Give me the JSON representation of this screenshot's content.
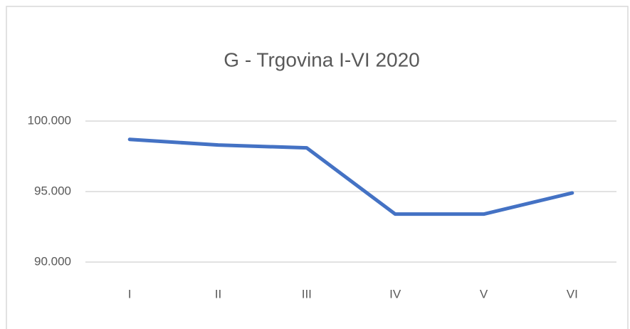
{
  "chart_data": {
    "type": "line",
    "title": "G - Trgovina I-VI 2020",
    "categories": [
      "I",
      "II",
      "III",
      "IV",
      "V",
      "VI"
    ],
    "values": [
      98700,
      98300,
      98100,
      93400,
      93400,
      94900
    ],
    "color": "#4472c4",
    "ylim": [
      90000,
      100000
    ],
    "yticks": [
      {
        "value": 90000,
        "label": "90.000"
      },
      {
        "value": 95000,
        "label": "95.000"
      },
      {
        "value": 100000,
        "label": "100.000"
      }
    ],
    "grid": true
  }
}
